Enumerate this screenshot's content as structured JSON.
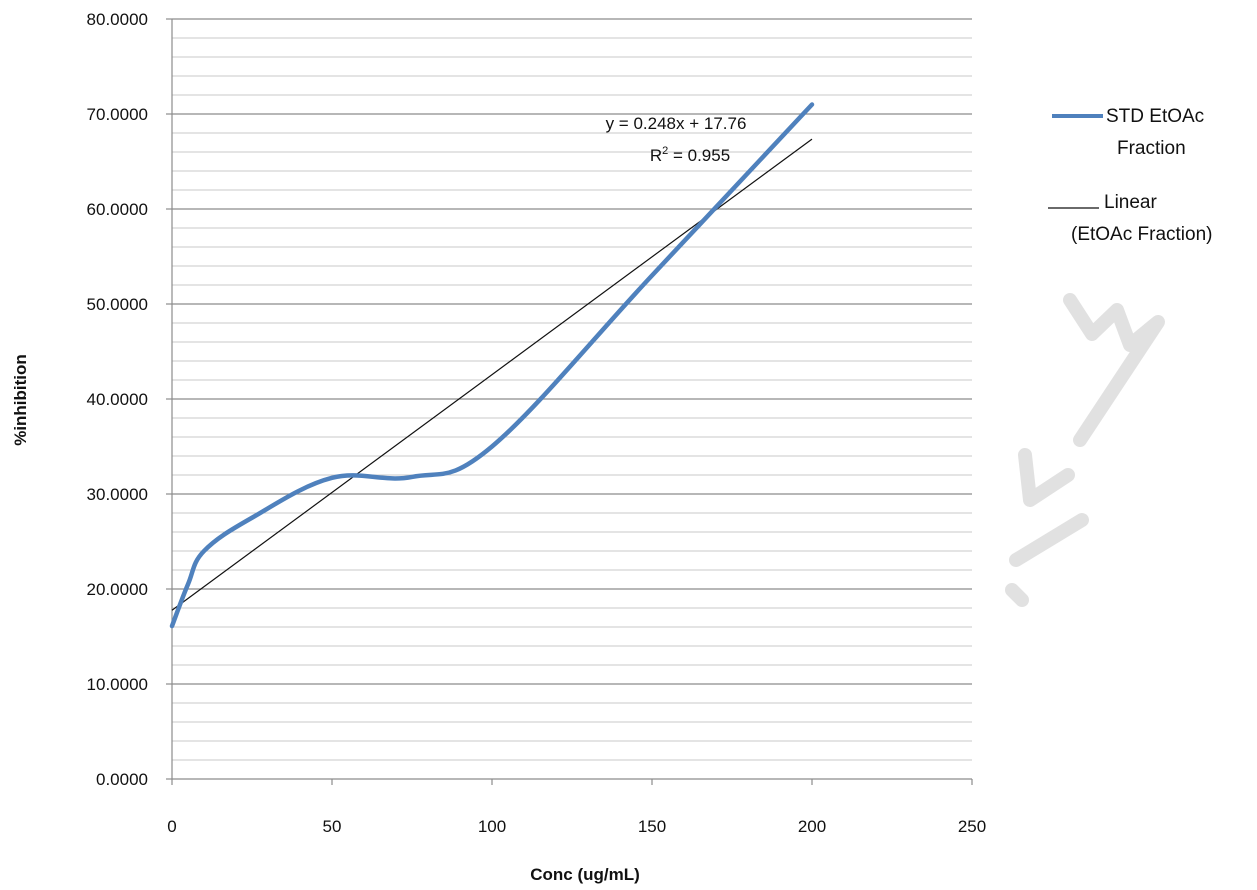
{
  "chart_data": {
    "type": "line",
    "xlabel": "Conc (ug/mL)",
    "ylabel": "%inhibition",
    "xlim": [
      0,
      250
    ],
    "ylim": [
      0,
      80
    ],
    "x_ticks": [
      "0",
      "50",
      "100",
      "150",
      "200",
      "250"
    ],
    "y_ticks": [
      "0.0000",
      "10.0000",
      "20.0000",
      "30.0000",
      "40.0000",
      "50.0000",
      "60.0000",
      "70.0000",
      "80.0000"
    ],
    "major_grid_step": 10,
    "minor_grid_step": 2,
    "legend_position": "right",
    "series": [
      {
        "name": "STD EtOAc Fraction",
        "color": "#4f81bd",
        "x": [
          0,
          5,
          10,
          25,
          50,
          75,
          100,
          150,
          200
        ],
        "y": [
          16.1,
          20.5,
          24.0,
          27.5,
          31.7,
          31.8,
          35.0,
          53.0,
          71.0
        ]
      }
    ],
    "trendline": {
      "name": "Linear (EtOAc Fraction)",
      "color": "#111111",
      "slope": 0.248,
      "intercept": 17.76,
      "x_range": [
        0,
        200
      ],
      "equation_label": "y = 0.248x + 17.76",
      "r2_prefix": "R",
      "r2_sup": "2",
      "r2_value": " = 0.955"
    },
    "legend": [
      {
        "lines": [
          "STD EtOAc",
          "Fraction"
        ]
      },
      {
        "lines": [
          "Linear",
          "(EtOAc Fraction)"
        ]
      }
    ]
  }
}
